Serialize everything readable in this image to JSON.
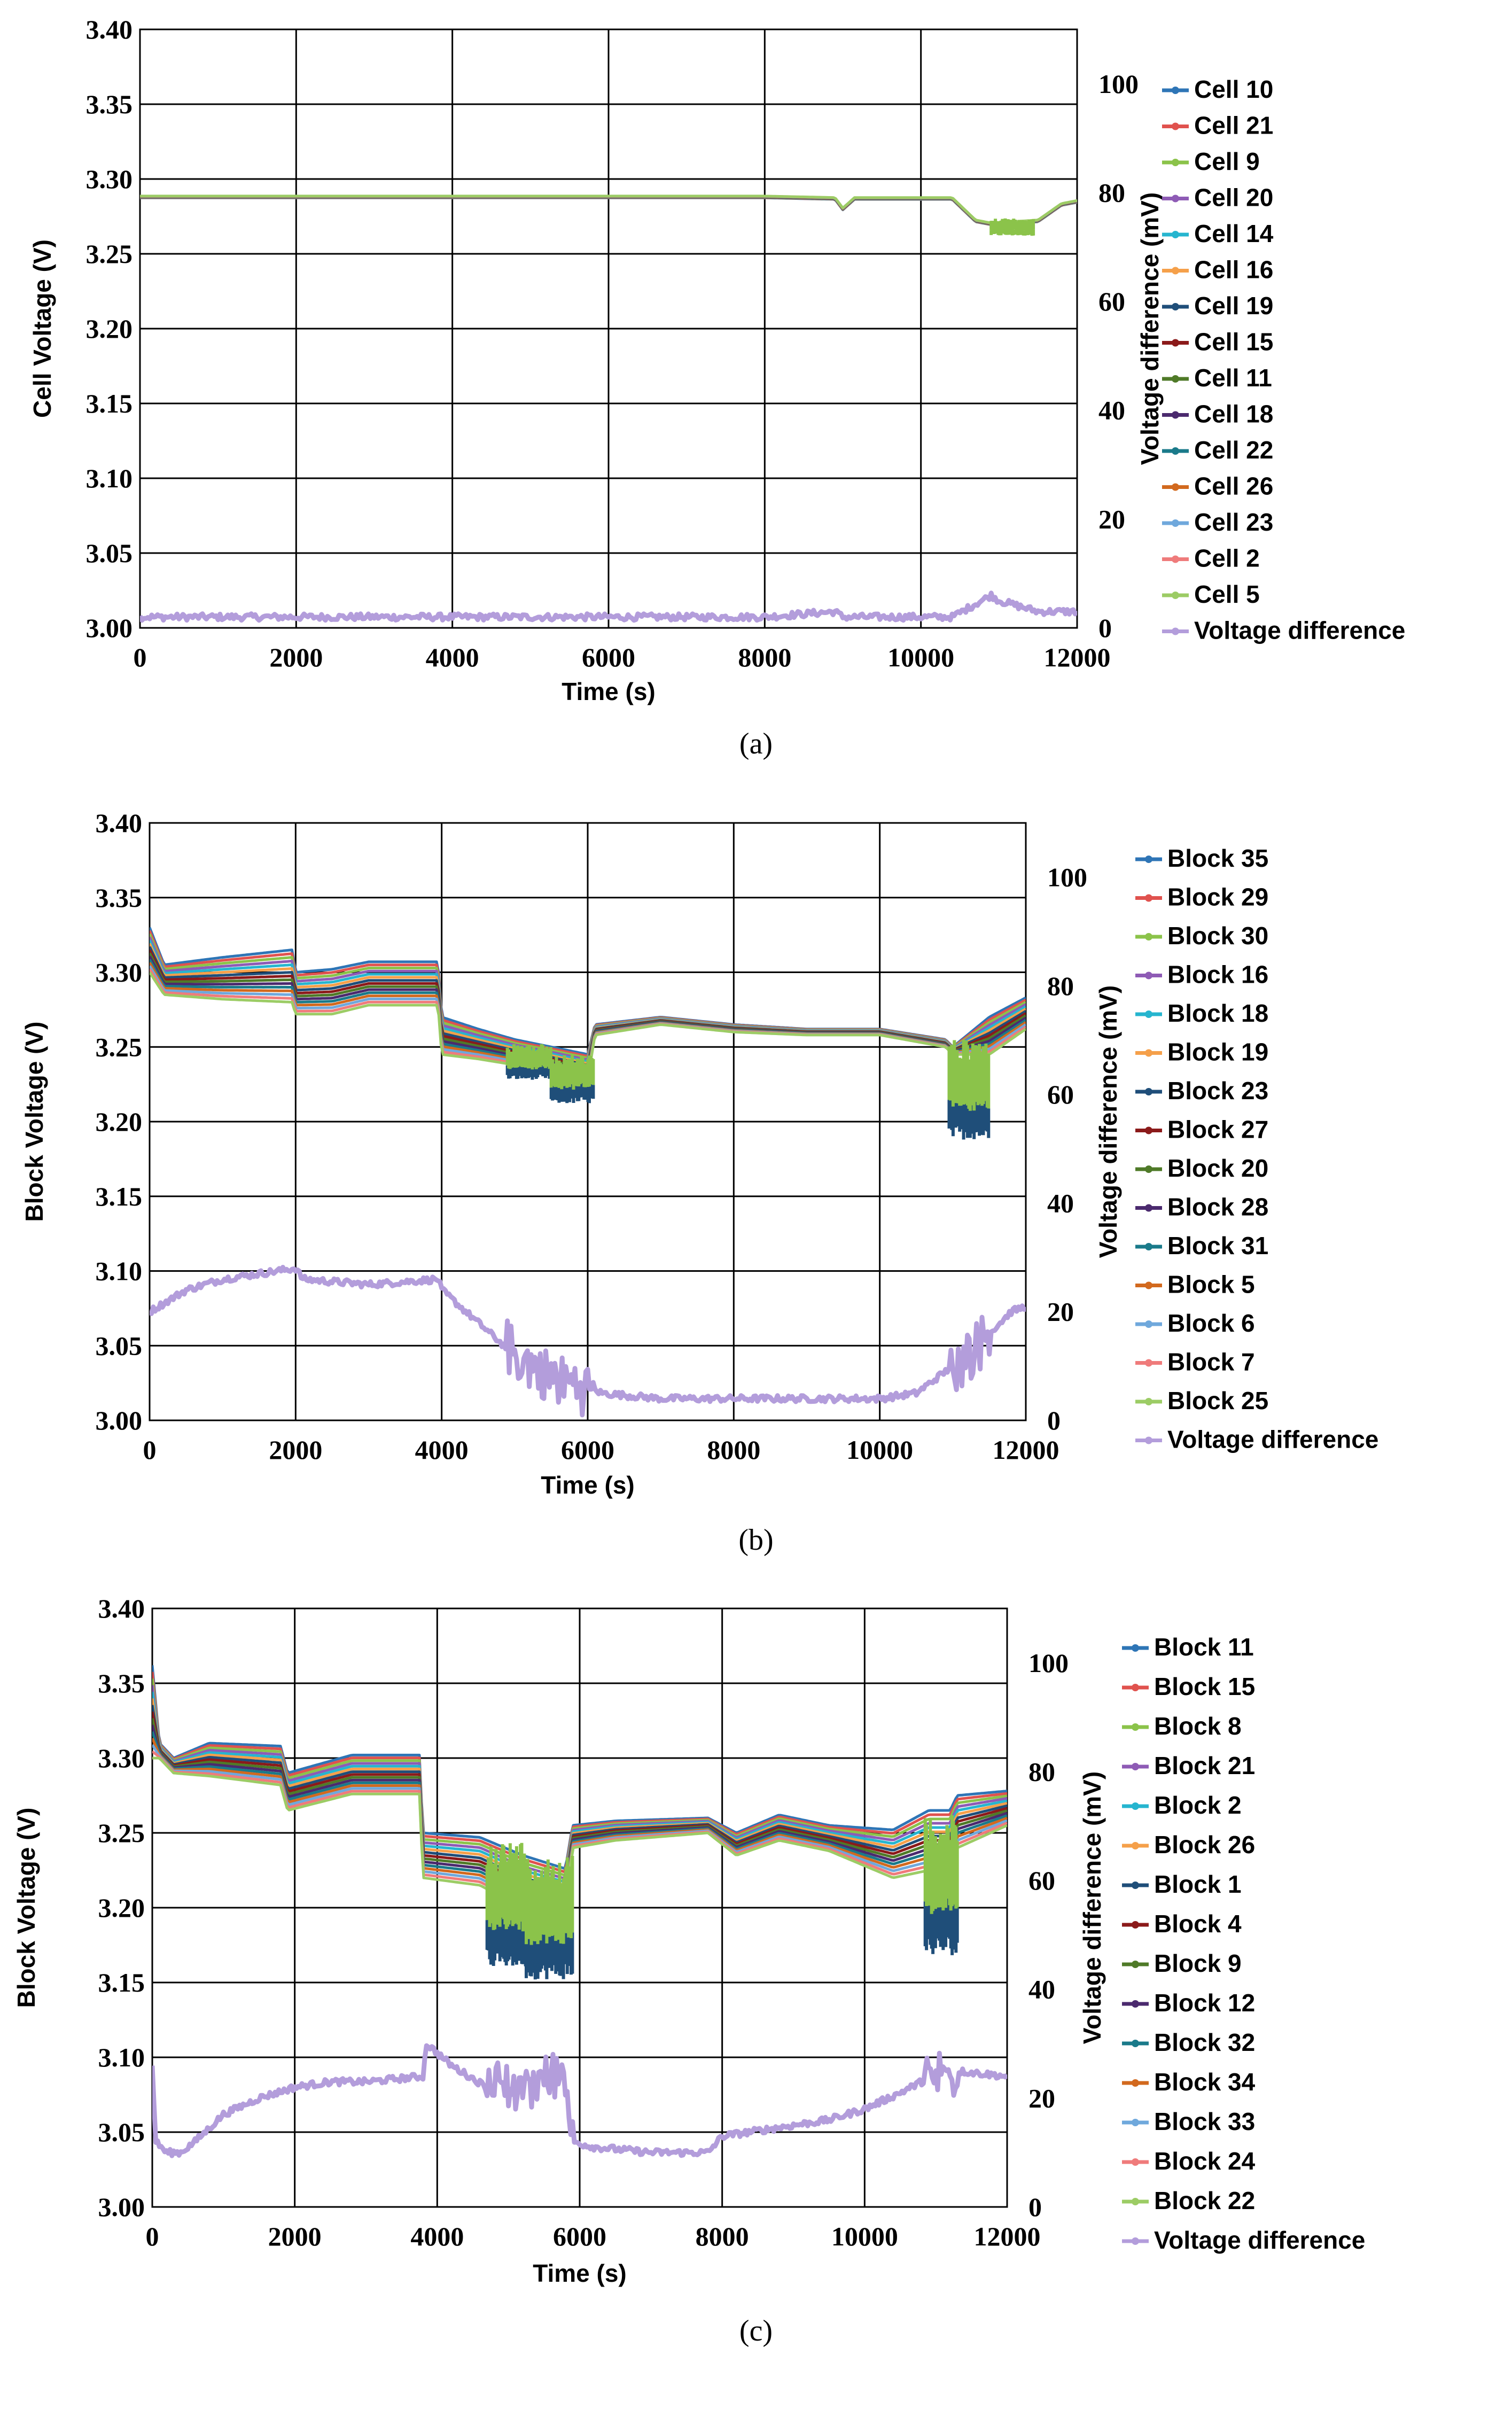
{
  "chart_data": [
    {
      "type": "line",
      "caption": "(a)",
      "xlabel": "Time (s)",
      "ylabel": "Cell Voltage (V)",
      "y2label": "Voltage difference (mV)",
      "xlim": [
        0,
        12000
      ],
      "ylim": [
        3.0,
        3.4
      ],
      "y2lim": [
        0,
        110
      ],
      "xticks": [
        "0",
        "2000",
        "4000",
        "6000",
        "8000",
        "10000",
        "12000"
      ],
      "yticks": [
        "3.00",
        "3.05",
        "3.10",
        "3.15",
        "3.20",
        "3.25",
        "3.30",
        "3.35",
        "3.40"
      ],
      "y2ticks": [
        "0",
        "20",
        "40",
        "60",
        "80",
        "100"
      ],
      "grid": true,
      "legend_position": "right",
      "series": [
        {
          "name": "Cell 10",
          "color": "#2e75b6"
        },
        {
          "name": "Cell 21",
          "color": "#e0524e"
        },
        {
          "name": "Cell 9",
          "color": "#8bc34a"
        },
        {
          "name": "Cell 20",
          "color": "#8e5bb5"
        },
        {
          "name": "Cell 14",
          "color": "#26b5cf"
        },
        {
          "name": "Cell 16",
          "color": "#f5a04a"
        },
        {
          "name": "Cell 19",
          "color": "#1f4e79"
        },
        {
          "name": "Cell 15",
          "color": "#8b1a1a"
        },
        {
          "name": "Cell 11",
          "color": "#4f7a28"
        },
        {
          "name": "Cell 18",
          "color": "#4b2a6e"
        },
        {
          "name": "Cell 22",
          "color": "#1a7a8a"
        },
        {
          "name": "Cell 26",
          "color": "#d2691e"
        },
        {
          "name": "Cell 23",
          "color": "#6fa8dc"
        },
        {
          "name": "Cell 2",
          "color": "#ef7b7b"
        },
        {
          "name": "Cell 5",
          "color": "#9ccc65"
        },
        {
          "name": "Voltage difference",
          "color": "#b39ddb",
          "axis": "right"
        }
      ],
      "voltage_profile": {
        "x": [
          0,
          2000,
          4000,
          6000,
          8000,
          8900,
          9000,
          9150,
          10400,
          10700,
          10900,
          11500,
          11800,
          12000
        ],
        "y": [
          3.288,
          3.288,
          3.288,
          3.288,
          3.288,
          3.287,
          3.28,
          3.287,
          3.287,
          3.272,
          3.27,
          3.272,
          3.283,
          3.285
        ]
      },
      "bands": [
        {
          "x0": 10900,
          "x1": 11450,
          "ymin": 3.262,
          "ymax": 3.274
        }
      ],
      "voltage_difference": {
        "x": [
          0,
          2000,
          4000,
          6000,
          8000,
          8900,
          9000,
          10400,
          10900,
          11000,
          11500,
          12000
        ],
        "y": [
          2,
          2,
          2,
          2,
          2,
          3,
          2,
          2,
          6,
          5,
          3,
          3
        ]
      }
    },
    {
      "type": "line",
      "caption": "(b)",
      "xlabel": "Time (s)",
      "ylabel": "Block Voltage (V)",
      "y2label": "Voltage difference (mV)",
      "xlim": [
        0,
        12000
      ],
      "ylim": [
        3.0,
        3.4
      ],
      "y2lim": [
        0,
        110
      ],
      "xticks": [
        "0",
        "2000",
        "4000",
        "6000",
        "8000",
        "10000",
        "12000"
      ],
      "yticks": [
        "3.00",
        "3.05",
        "3.10",
        "3.15",
        "3.20",
        "3.25",
        "3.30",
        "3.35",
        "3.40"
      ],
      "y2ticks": [
        "0",
        "20",
        "40",
        "60",
        "80",
        "100"
      ],
      "grid": true,
      "legend_position": "right",
      "series": [
        {
          "name": "Block 35",
          "color": "#2e75b6"
        },
        {
          "name": "Block 29",
          "color": "#e0524e"
        },
        {
          "name": "Block 30",
          "color": "#8bc34a"
        },
        {
          "name": "Block 16",
          "color": "#8e5bb5"
        },
        {
          "name": "Block 18",
          "color": "#26b5cf"
        },
        {
          "name": "Block 19",
          "color": "#f5a04a"
        },
        {
          "name": "Block 23",
          "color": "#1f4e79"
        },
        {
          "name": "Block 27",
          "color": "#8b1a1a"
        },
        {
          "name": "Block 20",
          "color": "#4f7a28"
        },
        {
          "name": "Block 28",
          "color": "#4b2a6e"
        },
        {
          "name": "Block 31",
          "color": "#1a7a8a"
        },
        {
          "name": "Block 5",
          "color": "#d2691e"
        },
        {
          "name": "Block 6",
          "color": "#6fa8dc"
        },
        {
          "name": "Block 7",
          "color": "#ef7b7b"
        },
        {
          "name": "Block 25",
          "color": "#9ccc65"
        },
        {
          "name": "Voltage difference",
          "color": "#b39ddb",
          "axis": "right"
        }
      ],
      "upper_profile": {
        "x": [
          0,
          200,
          1000,
          1950,
          2000,
          2500,
          3000,
          3950,
          4000,
          4500,
          5000,
          5500,
          6000,
          6100,
          7000,
          8000,
          9000,
          10000,
          10900,
          11000,
          11500,
          12000
        ],
        "y": [
          3.33,
          3.305,
          3.31,
          3.315,
          3.3,
          3.302,
          3.307,
          3.307,
          3.27,
          3.262,
          3.255,
          3.25,
          3.245,
          3.265,
          3.27,
          3.265,
          3.262,
          3.262,
          3.255,
          3.25,
          3.27,
          3.283
        ]
      },
      "lower_profile": {
        "x": [
          0,
          200,
          1000,
          1950,
          2000,
          2500,
          3000,
          3950,
          4000,
          4500,
          5000,
          5500,
          6000,
          6100,
          7000,
          8000,
          9000,
          10000,
          10900,
          11000,
          11500,
          12000
        ],
        "y": [
          3.3,
          3.285,
          3.282,
          3.28,
          3.272,
          3.272,
          3.278,
          3.278,
          3.245,
          3.242,
          3.238,
          3.234,
          3.228,
          3.258,
          3.265,
          3.26,
          3.258,
          3.258,
          3.25,
          3.245,
          3.245,
          3.262
        ]
      },
      "bands": [
        {
          "x0": 4900,
          "x1": 5500,
          "ymin": 3.228,
          "ymax": 3.252
        },
        {
          "x0": 5500,
          "x1": 6080,
          "ymin": 3.212,
          "ymax": 3.245
        },
        {
          "x0": 10950,
          "x1": 11500,
          "ymin": 3.188,
          "ymax": 3.255
        }
      ],
      "voltage_difference": {
        "x": [
          0,
          500,
          1000,
          1500,
          2000,
          2100,
          3000,
          3950,
          4000,
          4500,
          5000,
          5500,
          6000,
          6200,
          7000,
          8000,
          9000,
          10000,
          10500,
          11000,
          11500,
          11800,
          12000
        ],
        "y": [
          20,
          24,
          26,
          27,
          28,
          26,
          25,
          26,
          24,
          18,
          12,
          8,
          6,
          5,
          4,
          4,
          4,
          4,
          5,
          10,
          16,
          20,
          21
        ]
      }
    },
    {
      "type": "line",
      "caption": "(c)",
      "xlabel": "Time (s)",
      "ylabel": "Block  Voltage (V)",
      "y2label": "Voltage difference (mV)",
      "xlim": [
        0,
        12000
      ],
      "ylim": [
        3.0,
        3.4
      ],
      "y2lim": [
        0,
        110
      ],
      "xticks": [
        "0",
        "2000",
        "4000",
        "6000",
        "8000",
        "10000",
        "12000"
      ],
      "yticks": [
        "3.00",
        "3.05",
        "3.10",
        "3.15",
        "3.20",
        "3.25",
        "3.30",
        "3.35",
        "3.40"
      ],
      "y2ticks": [
        "0",
        "20",
        "40",
        "60",
        "80",
        "100"
      ],
      "grid": true,
      "legend_position": "right",
      "series": [
        {
          "name": "Block 11",
          "color": "#2e75b6"
        },
        {
          "name": "Block 15",
          "color": "#e0524e"
        },
        {
          "name": "Block 8",
          "color": "#8bc34a"
        },
        {
          "name": "Block 21",
          "color": "#8e5bb5"
        },
        {
          "name": "Block 2",
          "color": "#26b5cf"
        },
        {
          "name": "Block 26",
          "color": "#f5a04a"
        },
        {
          "name": "Block 1",
          "color": "#1f4e79"
        },
        {
          "name": "Block 4",
          "color": "#8b1a1a"
        },
        {
          "name": "Block 9",
          "color": "#4f7a28"
        },
        {
          "name": "Block 12",
          "color": "#4b2a6e"
        },
        {
          "name": "Block 32",
          "color": "#1a7a8a"
        },
        {
          "name": "Block 34",
          "color": "#d2691e"
        },
        {
          "name": "Block 33",
          "color": "#6fa8dc"
        },
        {
          "name": "Block 24",
          "color": "#ef7b7b"
        },
        {
          "name": "Block 22",
          "color": "#9ccc65"
        },
        {
          "name": "Voltage difference",
          "color": "#b39ddb",
          "axis": "right"
        }
      ],
      "upper_profile": {
        "x": [
          0,
          100,
          300,
          800,
          1800,
          1900,
          2800,
          3750,
          3800,
          4600,
          5200,
          5800,
          5900,
          6500,
          7800,
          8200,
          8800,
          9500,
          10400,
          10900,
          11200,
          11300,
          12000
        ],
        "y": [
          3.362,
          3.31,
          3.3,
          3.31,
          3.308,
          3.29,
          3.302,
          3.302,
          3.25,
          3.247,
          3.235,
          3.226,
          3.255,
          3.258,
          3.26,
          3.25,
          3.262,
          3.255,
          3.252,
          3.265,
          3.265,
          3.275,
          3.278
        ]
      },
      "lower_profile": {
        "x": [
          0,
          100,
          300,
          800,
          1800,
          1900,
          2800,
          3750,
          3800,
          4600,
          5200,
          5800,
          5900,
          6500,
          7800,
          8200,
          8800,
          9500,
          10400,
          10900,
          11200,
          11300,
          12000
        ],
        "y": [
          3.3,
          3.3,
          3.29,
          3.288,
          3.282,
          3.265,
          3.276,
          3.276,
          3.22,
          3.215,
          3.2,
          3.195,
          3.24,
          3.245,
          3.25,
          3.235,
          3.245,
          3.238,
          3.22,
          3.225,
          3.225,
          3.24,
          3.255
        ]
      },
      "bands": [
        {
          "x0": 4700,
          "x1": 5250,
          "ymin": 3.16,
          "ymax": 3.245
        },
        {
          "x0": 5250,
          "x1": 5900,
          "ymin": 3.152,
          "ymax": 3.235
        },
        {
          "x0": 10850,
          "x1": 11300,
          "ymin": 3.168,
          "ymax": 3.262
        }
      ],
      "voltage_difference": {
        "x": [
          0,
          50,
          200,
          400,
          600,
          1000,
          1500,
          2000,
          2500,
          3000,
          3800,
          3850,
          4200,
          4700,
          5200,
          5800,
          5900,
          6200,
          7000,
          7800,
          8000,
          8500,
          9000,
          9500,
          10000,
          10500,
          10800,
          11000,
          11300,
          12000
        ],
        "y": [
          26,
          12,
          10,
          10,
          12,
          17,
          20,
          22,
          23,
          23,
          24,
          30,
          26,
          22,
          22,
          25,
          12,
          11,
          10,
          10,
          13,
          14,
          15,
          16,
          18,
          21,
          23,
          24,
          25,
          24
        ]
      }
    }
  ]
}
